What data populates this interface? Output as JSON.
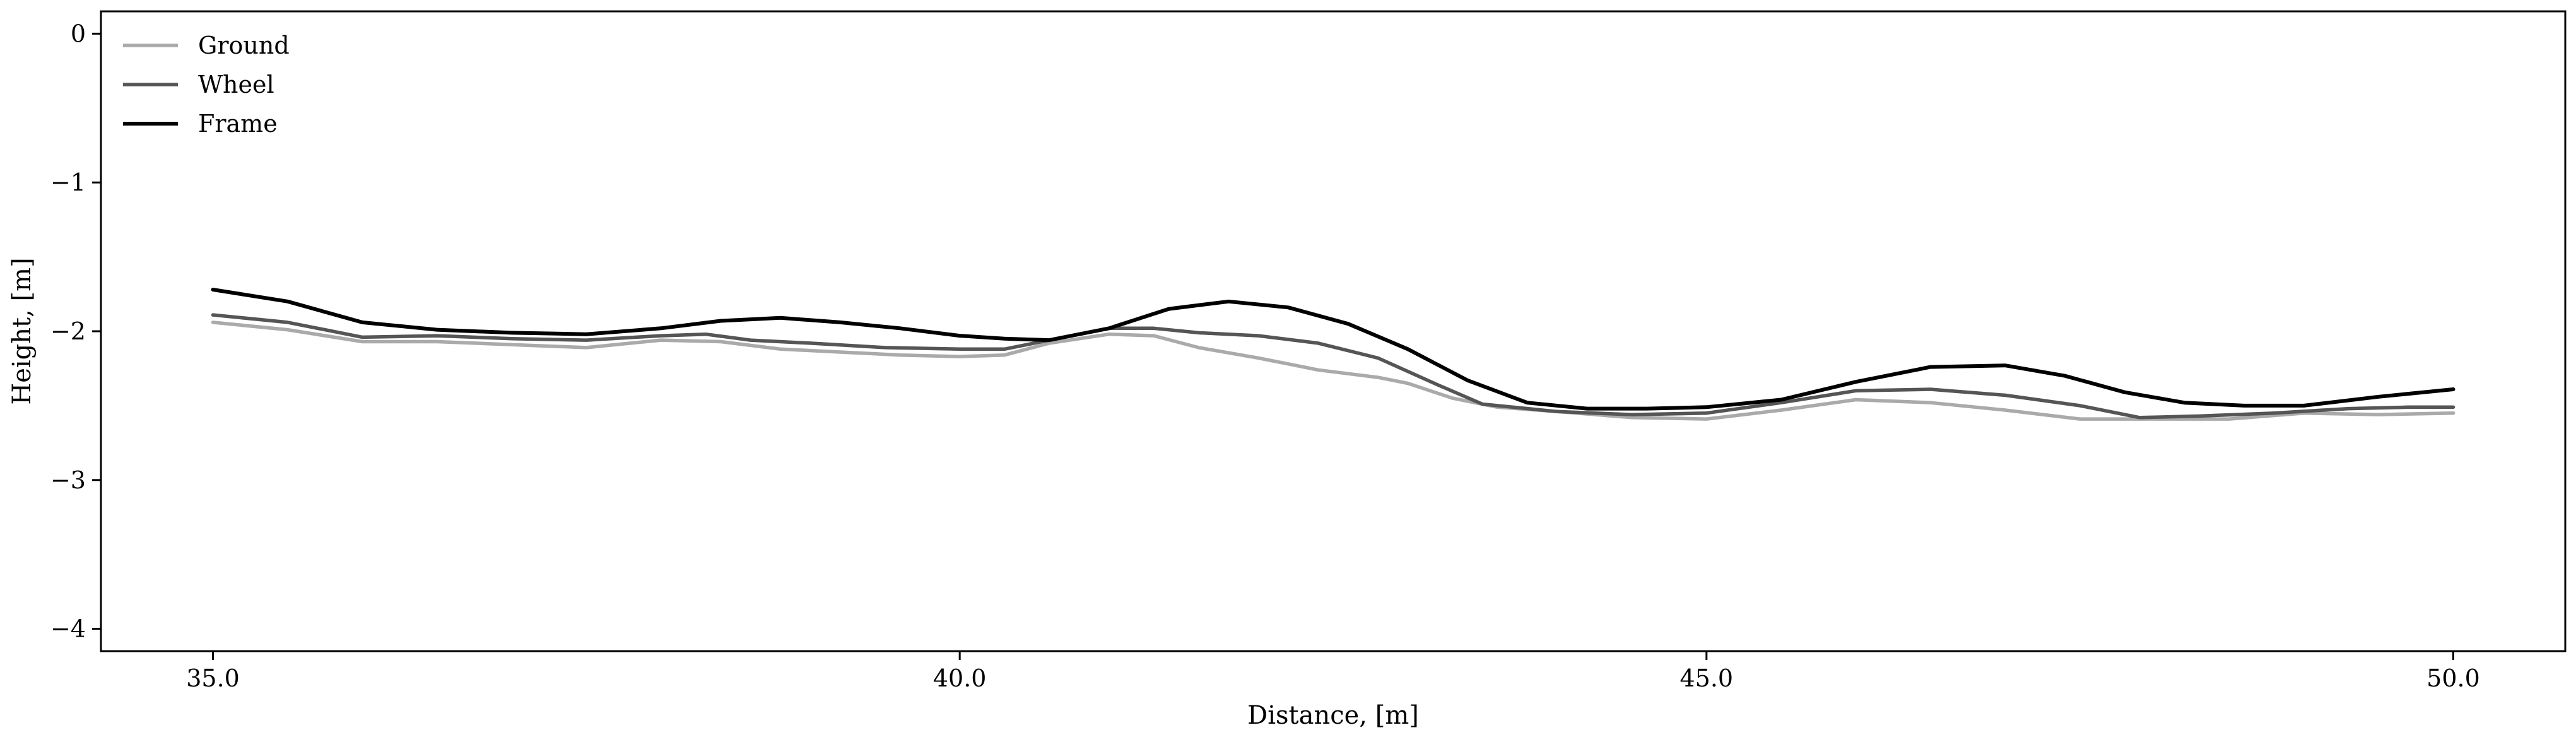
{
  "chart_data": {
    "type": "line",
    "title": "",
    "xlabel": "Distance, [m]",
    "ylabel": "Height, [m]",
    "xlim": [
      34.25,
      50.75
    ],
    "ylim": [
      -4.15,
      0.15
    ],
    "xticks": [
      35.0,
      40.0,
      45.0,
      50.0
    ],
    "xtick_labels": [
      "35.0",
      "40.0",
      "45.0",
      "50.0"
    ],
    "yticks": [
      0,
      -1,
      -2,
      -3,
      -4
    ],
    "ytick_labels": [
      "0",
      "−1",
      "−2",
      "−3",
      "−4"
    ],
    "grid": false,
    "legend_position": "top-left",
    "series": [
      {
        "name": "Ground",
        "color": "#aaaaaa",
        "x": [
          35.0,
          35.5,
          36.0,
          36.5,
          37.0,
          37.5,
          38.0,
          38.4,
          38.8,
          39.2,
          39.6,
          40.0,
          40.3,
          40.6,
          41.0,
          41.3,
          41.6,
          42.0,
          42.4,
          42.8,
          43.0,
          43.3,
          43.6,
          44.0,
          44.5,
          45.0,
          45.5,
          46.0,
          46.5,
          47.0,
          47.5,
          48.0,
          48.5,
          49.0,
          49.5,
          50.0
        ],
        "y": [
          -1.94,
          -1.99,
          -2.07,
          -2.07,
          -2.09,
          -2.11,
          -2.06,
          -2.07,
          -2.12,
          -2.14,
          -2.16,
          -2.17,
          -2.16,
          -2.08,
          -2.02,
          -2.03,
          -2.11,
          -2.18,
          -2.26,
          -2.31,
          -2.35,
          -2.45,
          -2.51,
          -2.54,
          -2.58,
          -2.59,
          -2.53,
          -2.46,
          -2.48,
          -2.53,
          -2.59,
          -2.59,
          -2.59,
          -2.55,
          -2.56,
          -2.55
        ]
      },
      {
        "name": "Wheel",
        "color": "#555555",
        "x": [
          35.0,
          35.5,
          36.0,
          36.5,
          37.0,
          37.5,
          38.0,
          38.3,
          38.6,
          39.0,
          39.5,
          40.0,
          40.3,
          40.6,
          41.0,
          41.3,
          41.6,
          42.0,
          42.4,
          42.8,
          43.2,
          43.5,
          44.0,
          44.5,
          45.0,
          45.5,
          46.0,
          46.5,
          47.0,
          47.5,
          47.9,
          48.3,
          48.8,
          49.3,
          49.7,
          50.0
        ],
        "y": [
          -1.89,
          -1.94,
          -2.04,
          -2.03,
          -2.05,
          -2.06,
          -2.03,
          -2.02,
          -2.06,
          -2.08,
          -2.11,
          -2.12,
          -2.12,
          -2.06,
          -1.98,
          -1.98,
          -2.01,
          -2.03,
          -2.08,
          -2.18,
          -2.36,
          -2.49,
          -2.54,
          -2.56,
          -2.55,
          -2.48,
          -2.4,
          -2.39,
          -2.43,
          -2.5,
          -2.58,
          -2.57,
          -2.55,
          -2.52,
          -2.51,
          -2.51
        ]
      },
      {
        "name": "Frame",
        "color": "#000000",
        "x": [
          35.0,
          35.5,
          36.0,
          36.5,
          37.0,
          37.5,
          38.0,
          38.4,
          38.8,
          39.2,
          39.6,
          40.0,
          40.3,
          40.6,
          41.0,
          41.4,
          41.8,
          42.2,
          42.6,
          43.0,
          43.4,
          43.8,
          44.2,
          44.6,
          45.0,
          45.5,
          46.0,
          46.5,
          47.0,
          47.4,
          47.8,
          48.2,
          48.6,
          49.0,
          49.5,
          50.0
        ],
        "y": [
          -1.72,
          -1.8,
          -1.94,
          -1.99,
          -2.01,
          -2.02,
          -1.98,
          -1.93,
          -1.91,
          -1.94,
          -1.98,
          -2.03,
          -2.05,
          -2.06,
          -1.98,
          -1.85,
          -1.8,
          -1.84,
          -1.95,
          -2.12,
          -2.33,
          -2.48,
          -2.52,
          -2.52,
          -2.51,
          -2.46,
          -2.34,
          -2.24,
          -2.23,
          -2.3,
          -2.41,
          -2.48,
          -2.5,
          -2.5,
          -2.44,
          -2.39
        ]
      }
    ]
  }
}
